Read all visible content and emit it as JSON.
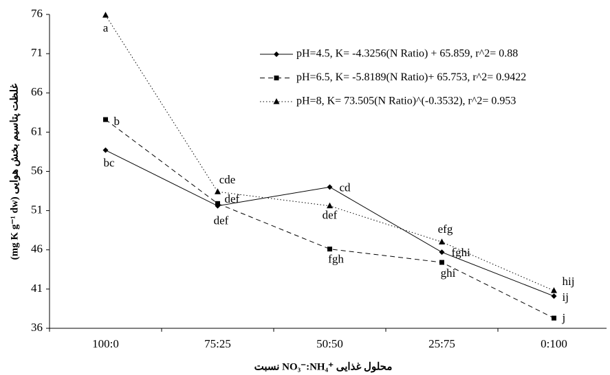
{
  "chart_data": {
    "type": "line",
    "x_label": "نسبت NO₃⁻:NH₄⁺ محلول غذایی",
    "y_label": "(mg K g⁻¹ dw) غلظت پتاسیم بخش هوایی",
    "categories": [
      "100:0",
      "75:25",
      "50:50",
      "25:75",
      "0:100"
    ],
    "series": [
      {
        "name": "pH=4.5, K= -4.3256(N Ratio) + 65.859, r^2= 0.88",
        "color": "#000000",
        "line_style": "solid",
        "marker": "diamond",
        "values": [
          58.7,
          51.6,
          54.0,
          45.7,
          40.1
        ],
        "labels": [
          "bc",
          "def",
          "cd",
          "fghi",
          "ij"
        ]
      },
      {
        "name": "pH=6.5, K= -5.8189(N Ratio)+ 65.753, r^2= 0.9422",
        "color": "#000000",
        "line_style": "dashed",
        "marker": "square",
        "values": [
          62.6,
          51.9,
          46.1,
          44.4,
          37.3
        ],
        "labels": [
          "b",
          "def",
          "fgh",
          "ghi",
          "j"
        ]
      },
      {
        "name": "pH=8, K= 73.505(N Ratio)^(-0.3532), r^2= 0.953",
        "color": "#000000",
        "line_style": "dotted",
        "marker": "triangle",
        "values": [
          75.9,
          53.4,
          51.6,
          47.0,
          40.8
        ],
        "labels": [
          "a",
          "cde",
          "def",
          "efg",
          "hij"
        ]
      }
    ],
    "ylim": [
      36,
      76
    ],
    "yticks": [
      36,
      41,
      46,
      51,
      56,
      61,
      66,
      71,
      76
    ],
    "grid": false,
    "legend": "upper right"
  }
}
